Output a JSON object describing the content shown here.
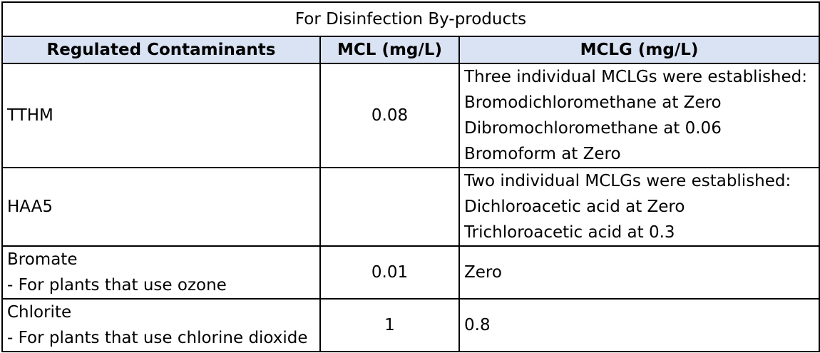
{
  "table": {
    "title": "For Disinfection By-products",
    "headers": [
      "Regulated Contaminants",
      "MCL (mg/L)",
      "MCLG (mg/L)"
    ],
    "rows": [
      {
        "contaminant": [
          "TTHM"
        ],
        "mcl": "0.08",
        "mclg": [
          "Three individual MCLGs were established:",
          "Bromodichloromethane at Zero",
          "Dibromochloromethane at 0.06",
          "Bromoform at Zero"
        ]
      },
      {
        "contaminant": [
          "HAA5"
        ],
        "mcl": "",
        "mclg": [
          "Two individual MCLGs were established:",
          "Dichloroacetic acid at Zero",
          "Trichloroacetic acid at 0.3"
        ]
      },
      {
        "contaminant": [
          "Bromate",
          "- For plants that use ozone"
        ],
        "mcl": "0.01",
        "mclg": [
          "Zero"
        ]
      },
      {
        "contaminant": [
          "Chlorite",
          "- For plants that use chlorine dioxide"
        ],
        "mcl": "1",
        "mclg": [
          "0.8"
        ]
      }
    ]
  },
  "colors": {
    "header_background": "#dae3f3",
    "border": "#000000",
    "text": "#000000"
  }
}
